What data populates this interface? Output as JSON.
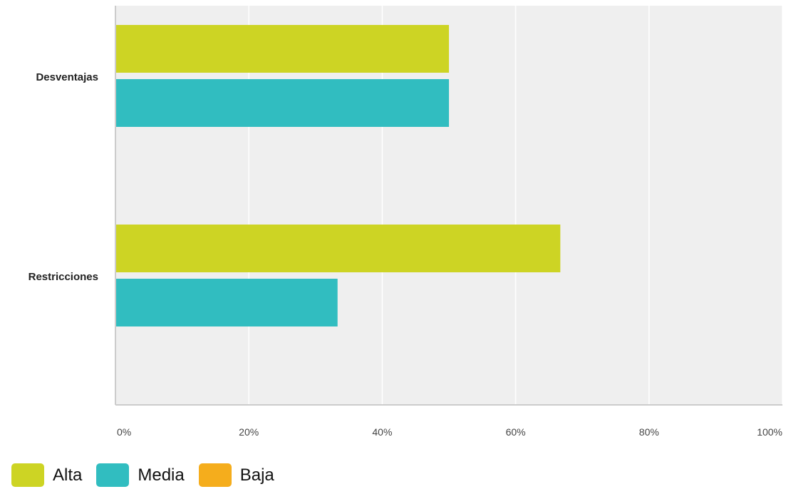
{
  "chart_data": {
    "type": "bar",
    "orientation": "horizontal",
    "categories": [
      "Desventajas",
      "Restricciones"
    ],
    "series": [
      {
        "name": "Alta",
        "color": "#cdd424",
        "values": [
          50,
          66.7
        ]
      },
      {
        "name": "Media",
        "color": "#31bdc0",
        "values": [
          50,
          33.3
        ]
      },
      {
        "name": "Baja",
        "color": "#f5ad1c",
        "values": [
          0,
          0
        ]
      }
    ],
    "xlim": [
      0,
      100
    ],
    "xticks": [
      0,
      20,
      40,
      60,
      80,
      100
    ],
    "xtick_labels": [
      "0%",
      "20%",
      "40%",
      "60%",
      "80%",
      "100%"
    ],
    "grid": true,
    "plot_background": "#efefef",
    "legend_position": "bottom-left"
  }
}
